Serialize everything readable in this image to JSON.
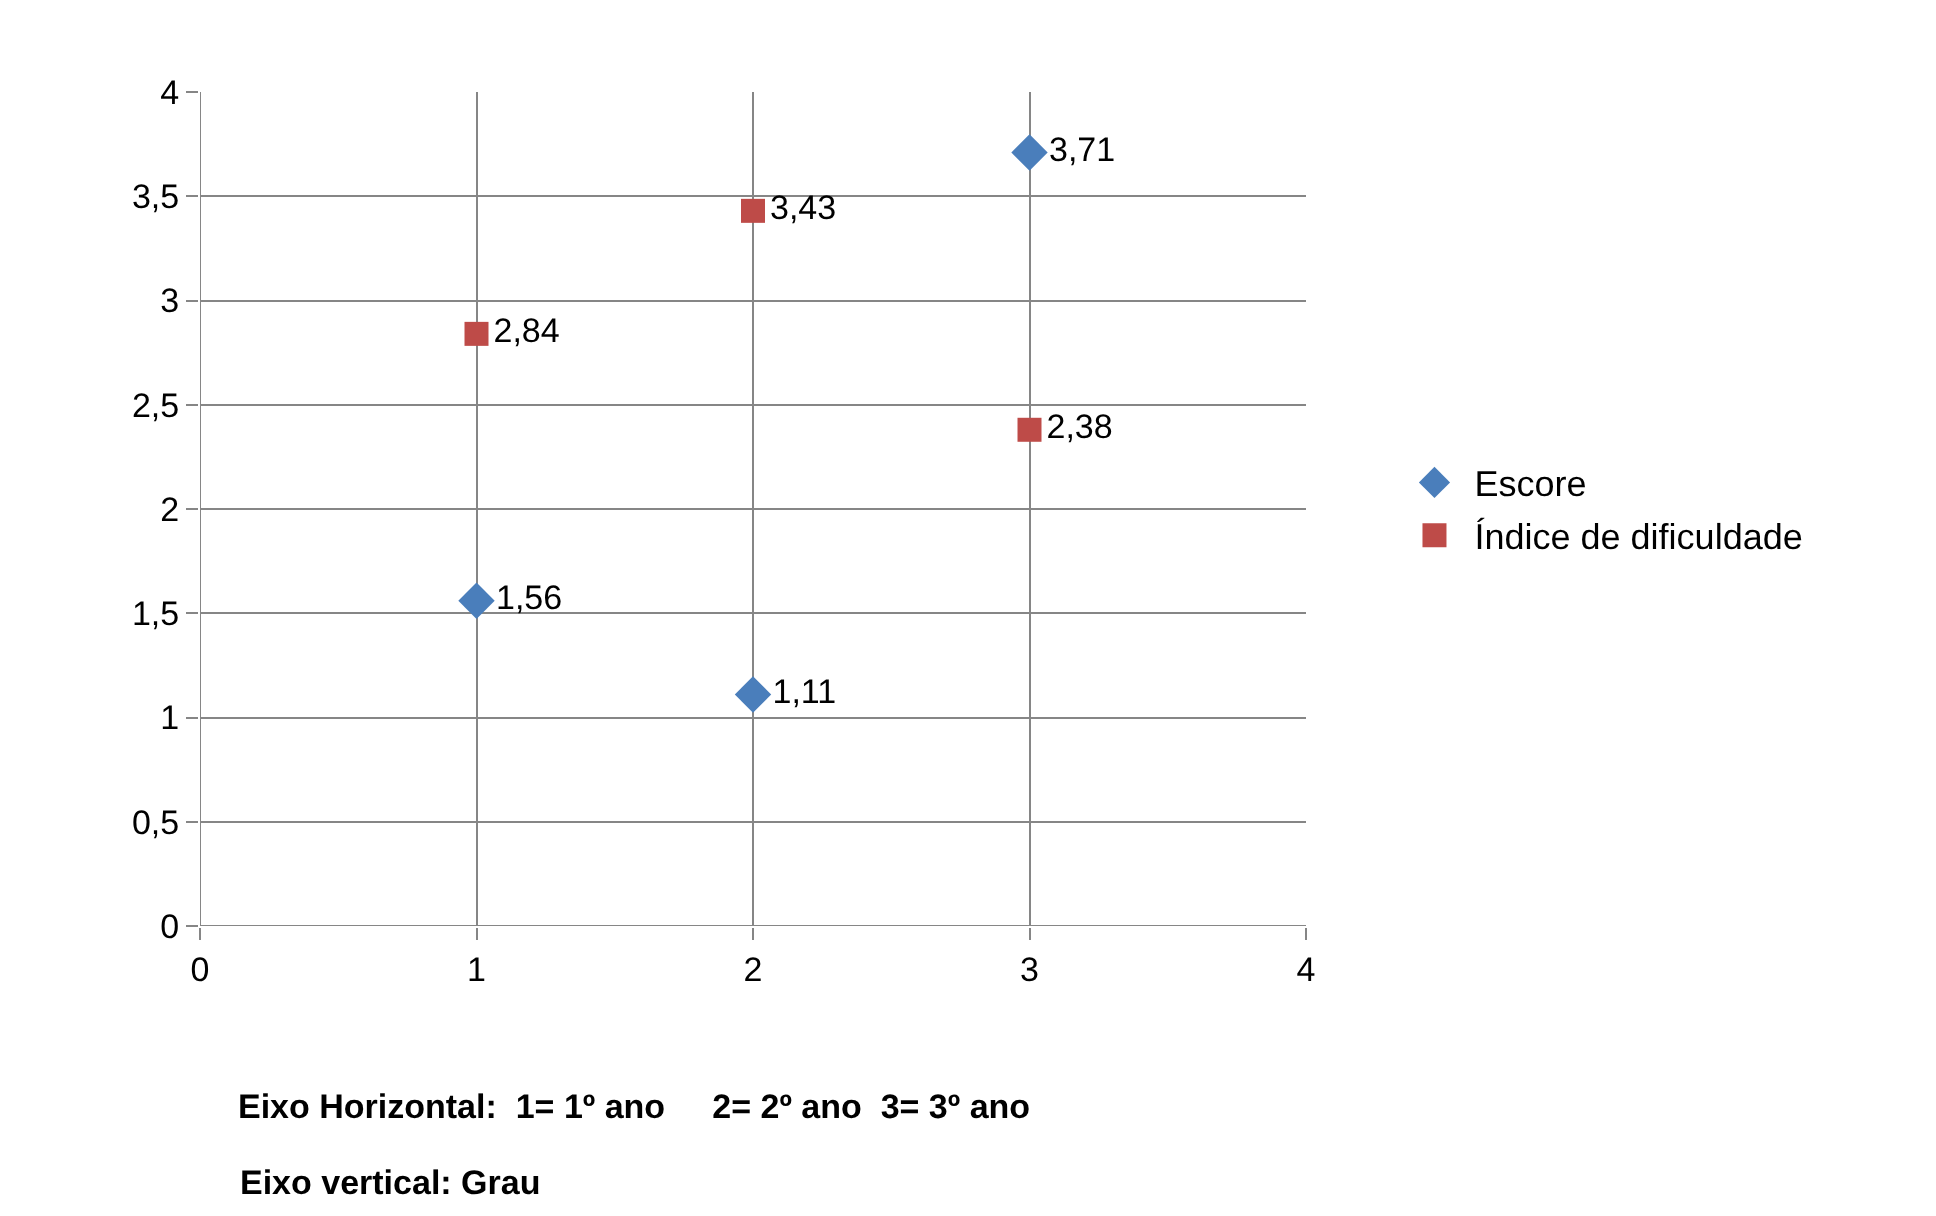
{
  "chart_data": {
    "type": "scatter",
    "x": [
      1,
      2,
      3
    ],
    "series": [
      {
        "name": "Escore",
        "color": "#4a7ebb",
        "marker": "diamond",
        "values": [
          1.56,
          1.11,
          3.71
        ],
        "value_labels": [
          "1,56",
          "1,11",
          "3,71"
        ]
      },
      {
        "name": "Índice de dificuldade",
        "color": "#be4b48",
        "marker": "square",
        "values": [
          2.84,
          3.43,
          2.38
        ],
        "value_labels": [
          "2,84",
          "3,43",
          "2,38"
        ]
      }
    ],
    "xlim": [
      0,
      4
    ],
    "xticks": [
      0,
      1,
      2,
      3,
      4
    ],
    "ylim": [
      0,
      4
    ],
    "yticks": [
      0,
      {
        "value": 0.5,
        "label": "0,5"
      },
      1,
      {
        "value": 1.5,
        "label": "1,5"
      },
      2,
      {
        "value": 2.5,
        "label": "2,5"
      },
      3,
      {
        "value": 3.5,
        "label": "3,5"
      },
      4
    ],
    "grid": true,
    "legend": "right",
    "annotations": [
      "Eixo Horizontal:  1= 1º ano     2= 2º ano  3= 3º ano",
      "Eixo vertical: Grau"
    ]
  }
}
